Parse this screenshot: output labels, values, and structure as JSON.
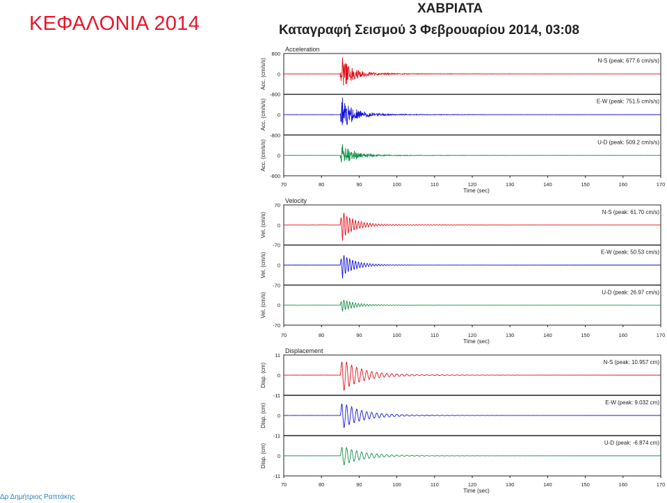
{
  "slide": {
    "title": "ΚΕΦΑΛΟΝΙΑ 2014",
    "author": "Δρ Δημήτριος Ραπτάκης"
  },
  "figure": {
    "title": "ΧΑΒΡΙΑΤΑ",
    "subtitle": "Καταγραφή Σεισμού  3 Φεβρουαρίου 2014, 03:08"
  },
  "colors": {
    "ns": "#e0101a",
    "ew": "#1414d8",
    "ud": "#129048",
    "title": "#e8162a",
    "author": "#2a7fbf"
  },
  "chart_data": [
    {
      "type": "line",
      "title": "Acceleration",
      "xlabel": "Time (sec)",
      "ylabels": [
        "Acc. (cm/s/s)",
        "Acc. (cm/s/s)",
        "Acc. (cm/s/s)"
      ],
      "xlim": [
        70,
        170
      ],
      "x_ticks": [
        "70",
        "80",
        "90",
        "100",
        "110",
        "120",
        "130",
        "140",
        "150",
        "160",
        "170"
      ],
      "ylim": [
        -800,
        800
      ],
      "y_ticks": [
        "800",
        "0",
        "-800",
        "0",
        "-800",
        "0",
        "-800"
      ],
      "series": [
        {
          "name": "N-S (peak: 677.6 cm/s/s)",
          "component": "ns",
          "peak": 677.6
        },
        {
          "name": "E-W (peak: 751.5 cm/s/s)",
          "component": "ew",
          "peak": 751.5
        },
        {
          "name": "U-D (peak: 509.2 cm/s/s)",
          "component": "ud",
          "peak": 509.2
        }
      ]
    },
    {
      "type": "line",
      "title": "Velocity",
      "xlabel": "Time (sec)",
      "ylabels": [
        "Vel. (cm/s)",
        "Vel. (cm/s)",
        "Vel. (cm/s)"
      ],
      "xlim": [
        70,
        170
      ],
      "x_ticks": [
        "70",
        "80",
        "90",
        "100",
        "110",
        "120",
        "130",
        "140",
        "150",
        "160",
        "170"
      ],
      "ylim": [
        -70,
        70
      ],
      "y_ticks": [
        "70",
        "0",
        "-70",
        "0",
        "-70",
        "0",
        "-70"
      ],
      "series": [
        {
          "name": "N-S (peak: 61.70 cm/s)",
          "component": "ns",
          "peak": 61.7
        },
        {
          "name": "E-W (peak: 50.53 cm/s)",
          "component": "ew",
          "peak": 50.53
        },
        {
          "name": "U-D (peak: 26.97 cm/s)",
          "component": "ud",
          "peak": 26.97
        }
      ]
    },
    {
      "type": "line",
      "title": "Displacement",
      "xlabel": "Time (sec)",
      "ylabels": [
        "Disp. (cm)",
        "Disp. (cm)",
        "Disp. (cm)"
      ],
      "xlim": [
        70,
        170
      ],
      "x_ticks": [
        "70",
        "80",
        "90",
        "100",
        "110",
        "120",
        "130",
        "140",
        "150",
        "160",
        "170"
      ],
      "ylim": [
        -11,
        11
      ],
      "y_ticks": [
        "11",
        "0",
        "-11",
        "0",
        "-11",
        "0",
        "-11"
      ],
      "series": [
        {
          "name": "N-S (peak: 10.957 cm)",
          "component": "ns",
          "peak": 10.957
        },
        {
          "name": "E-W (peak: 9.032 cm)",
          "component": "ew",
          "peak": 9.032
        },
        {
          "name": "U-D (peak: -6.874 cm)",
          "component": "ud",
          "peak": -6.874
        }
      ]
    }
  ]
}
